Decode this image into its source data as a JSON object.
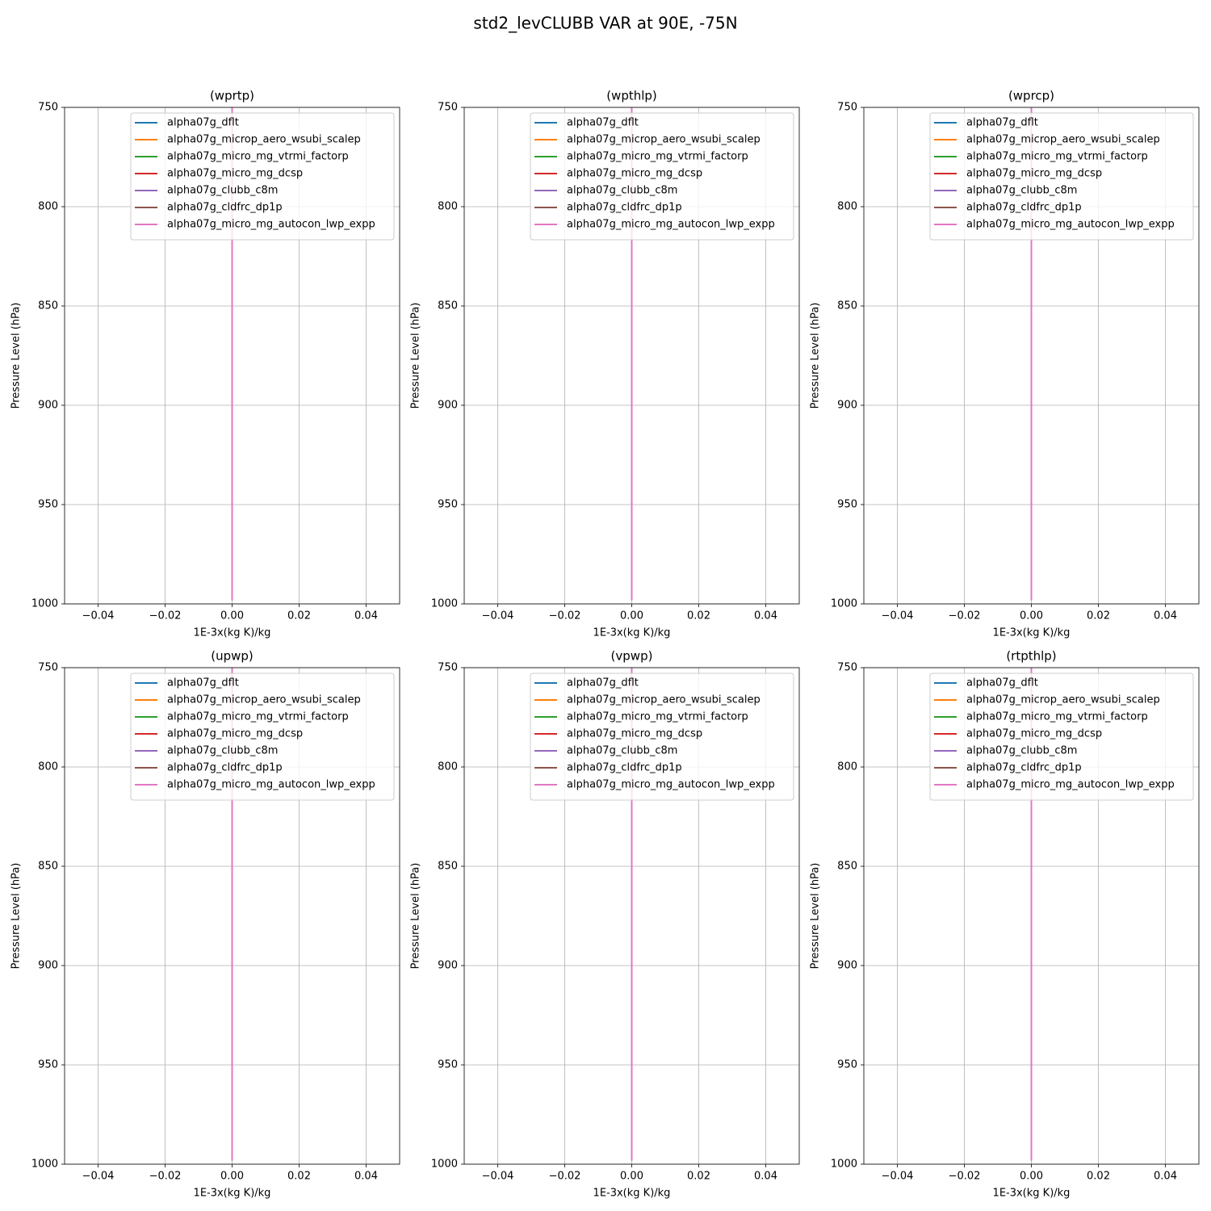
{
  "title": "std2_levCLUBB VAR at 90E, -75N",
  "chart_data": [
    {
      "type": "line",
      "title": "(wprtp)",
      "xlabel": "1E-3x(kg K)/kg",
      "ylabel": "Pressure Level (hPa)",
      "xlim": [
        -0.05,
        0.05
      ],
      "ylim": [
        1000,
        750
      ],
      "xticks": [
        {
          "value": -0.04,
          "label": "−0.04"
        },
        {
          "value": -0.02,
          "label": "−0.02"
        },
        {
          "value": 0,
          "label": "0.00"
        },
        0.02,
        0.04
      ],
      "yticks": [
        750,
        800,
        850,
        900,
        950,
        1000
      ],
      "grid": true,
      "legend": "upper right",
      "y": [
        750,
        800,
        850,
        900,
        950,
        998
      ],
      "series": [
        {
          "name": "alpha07g_dflt",
          "color": "#1f77b4",
          "values": [
            0,
            0,
            0,
            0,
            0,
            0
          ]
        },
        {
          "name": "alpha07g_microp_aero_wsubi_scalep",
          "color": "#ff7f0e",
          "values": [
            0,
            0,
            0,
            0,
            0,
            0
          ]
        },
        {
          "name": "alpha07g_micro_mg_vtrmi_factorp",
          "color": "#2ca02c",
          "values": [
            0,
            0,
            0,
            0,
            0,
            0
          ]
        },
        {
          "name": "alpha07g_micro_mg_dcsp",
          "color": "#d62728",
          "values": [
            0,
            0,
            0,
            0,
            0,
            0
          ]
        },
        {
          "name": "alpha07g_clubb_c8m",
          "color": "#9467bd",
          "values": [
            0,
            0,
            0,
            0,
            0,
            0
          ]
        },
        {
          "name": "alpha07g_cldfrc_dp1p",
          "color": "#8c564b",
          "values": [
            0,
            0,
            0,
            0,
            0,
            0
          ]
        },
        {
          "name": "alpha07g_micro_mg_autocon_lwp_expp",
          "color": "#e377c2",
          "values": [
            0,
            0,
            0,
            0,
            0,
            0
          ]
        }
      ]
    },
    {
      "type": "line",
      "title": "(wpthlp)",
      "xlabel": "1E-3x(kg K)/kg",
      "ylabel": "Pressure Level (hPa)",
      "xlim": [
        -0.05,
        0.05
      ],
      "ylim": [
        1000,
        750
      ],
      "xticks": [
        {
          "value": -0.04,
          "label": "−0.04"
        },
        {
          "value": -0.02,
          "label": "−0.02"
        },
        {
          "value": 0,
          "label": "0.00"
        },
        0.02,
        0.04
      ],
      "yticks": [
        750,
        800,
        850,
        900,
        950,
        1000
      ],
      "grid": true,
      "legend": "upper right",
      "y": [
        750,
        800,
        850,
        900,
        950,
        998
      ],
      "series": [
        {
          "name": "alpha07g_dflt",
          "color": "#1f77b4",
          "values": [
            0,
            0,
            0,
            0,
            0,
            0
          ]
        },
        {
          "name": "alpha07g_microp_aero_wsubi_scalep",
          "color": "#ff7f0e",
          "values": [
            0,
            0,
            0,
            0,
            0,
            0
          ]
        },
        {
          "name": "alpha07g_micro_mg_vtrmi_factorp",
          "color": "#2ca02c",
          "values": [
            0,
            0,
            0,
            0,
            0,
            0
          ]
        },
        {
          "name": "alpha07g_micro_mg_dcsp",
          "color": "#d62728",
          "values": [
            0,
            0,
            0,
            0,
            0,
            0
          ]
        },
        {
          "name": "alpha07g_clubb_c8m",
          "color": "#9467bd",
          "values": [
            0,
            0,
            0,
            0,
            0,
            0
          ]
        },
        {
          "name": "alpha07g_cldfrc_dp1p",
          "color": "#8c564b",
          "values": [
            0,
            0,
            0,
            0,
            0,
            0
          ]
        },
        {
          "name": "alpha07g_micro_mg_autocon_lwp_expp",
          "color": "#e377c2",
          "values": [
            0,
            0,
            0,
            0,
            0,
            0
          ]
        }
      ]
    },
    {
      "type": "line",
      "title": "(wprcp)",
      "xlabel": "1E-3x(kg K)/kg",
      "ylabel": "Pressure Level (hPa)",
      "xlim": [
        -0.05,
        0.05
      ],
      "ylim": [
        1000,
        750
      ],
      "xticks": [
        {
          "value": -0.04,
          "label": "−0.04"
        },
        {
          "value": -0.02,
          "label": "−0.02"
        },
        {
          "value": 0,
          "label": "0.00"
        },
        0.02,
        0.04
      ],
      "yticks": [
        750,
        800,
        850,
        900,
        950,
        1000
      ],
      "grid": true,
      "legend": "upper right",
      "y": [
        750,
        800,
        850,
        900,
        950,
        998
      ],
      "series": [
        {
          "name": "alpha07g_dflt",
          "color": "#1f77b4",
          "values": [
            0,
            0,
            0,
            0,
            0,
            0
          ]
        },
        {
          "name": "alpha07g_microp_aero_wsubi_scalep",
          "color": "#ff7f0e",
          "values": [
            0,
            0,
            0,
            0,
            0,
            0
          ]
        },
        {
          "name": "alpha07g_micro_mg_vtrmi_factorp",
          "color": "#2ca02c",
          "values": [
            0,
            0,
            0,
            0,
            0,
            0
          ]
        },
        {
          "name": "alpha07g_micro_mg_dcsp",
          "color": "#d62728",
          "values": [
            0,
            0,
            0,
            0,
            0,
            0
          ]
        },
        {
          "name": "alpha07g_clubb_c8m",
          "color": "#9467bd",
          "values": [
            0,
            0,
            0,
            0,
            0,
            0
          ]
        },
        {
          "name": "alpha07g_cldfrc_dp1p",
          "color": "#8c564b",
          "values": [
            0,
            0,
            0,
            0,
            0,
            0
          ]
        },
        {
          "name": "alpha07g_micro_mg_autocon_lwp_expp",
          "color": "#e377c2",
          "values": [
            0,
            0,
            0,
            0,
            0,
            0
          ]
        }
      ]
    },
    {
      "type": "line",
      "title": "(upwp)",
      "xlabel": "1E-3x(kg K)/kg",
      "ylabel": "Pressure Level (hPa)",
      "xlim": [
        -0.05,
        0.05
      ],
      "ylim": [
        1000,
        750
      ],
      "xticks": [
        {
          "value": -0.04,
          "label": "−0.04"
        },
        {
          "value": -0.02,
          "label": "−0.02"
        },
        {
          "value": 0,
          "label": "0.00"
        },
        0.02,
        0.04
      ],
      "yticks": [
        750,
        800,
        850,
        900,
        950,
        1000
      ],
      "grid": true,
      "legend": "upper right",
      "y": [
        750,
        800,
        850,
        900,
        950,
        998
      ],
      "series": [
        {
          "name": "alpha07g_dflt",
          "color": "#1f77b4",
          "values": [
            0,
            0,
            0,
            0,
            0,
            0
          ]
        },
        {
          "name": "alpha07g_microp_aero_wsubi_scalep",
          "color": "#ff7f0e",
          "values": [
            0,
            0,
            0,
            0,
            0,
            0
          ]
        },
        {
          "name": "alpha07g_micro_mg_vtrmi_factorp",
          "color": "#2ca02c",
          "values": [
            0,
            0,
            0,
            0,
            0,
            0
          ]
        },
        {
          "name": "alpha07g_micro_mg_dcsp",
          "color": "#d62728",
          "values": [
            0,
            0,
            0,
            0,
            0,
            0
          ]
        },
        {
          "name": "alpha07g_clubb_c8m",
          "color": "#9467bd",
          "values": [
            0,
            0,
            0,
            0,
            0,
            0
          ]
        },
        {
          "name": "alpha07g_cldfrc_dp1p",
          "color": "#8c564b",
          "values": [
            0,
            0,
            0,
            0,
            0,
            0
          ]
        },
        {
          "name": "alpha07g_micro_mg_autocon_lwp_expp",
          "color": "#e377c2",
          "values": [
            0,
            0,
            0,
            0,
            0,
            0
          ]
        }
      ]
    },
    {
      "type": "line",
      "title": "(vpwp)",
      "xlabel": "1E-3x(kg K)/kg",
      "ylabel": "Pressure Level (hPa)",
      "xlim": [
        -0.05,
        0.05
      ],
      "ylim": [
        1000,
        750
      ],
      "xticks": [
        {
          "value": -0.04,
          "label": "−0.04"
        },
        {
          "value": -0.02,
          "label": "−0.02"
        },
        {
          "value": 0,
          "label": "0.00"
        },
        0.02,
        0.04
      ],
      "yticks": [
        750,
        800,
        850,
        900,
        950,
        1000
      ],
      "grid": true,
      "legend": "upper right",
      "y": [
        750,
        800,
        850,
        900,
        950,
        998
      ],
      "series": [
        {
          "name": "alpha07g_dflt",
          "color": "#1f77b4",
          "values": [
            0,
            0,
            0,
            0,
            0,
            0
          ]
        },
        {
          "name": "alpha07g_microp_aero_wsubi_scalep",
          "color": "#ff7f0e",
          "values": [
            0,
            0,
            0,
            0,
            0,
            0
          ]
        },
        {
          "name": "alpha07g_micro_mg_vtrmi_factorp",
          "color": "#2ca02c",
          "values": [
            0,
            0,
            0,
            0,
            0,
            0
          ]
        },
        {
          "name": "alpha07g_micro_mg_dcsp",
          "color": "#d62728",
          "values": [
            0,
            0,
            0,
            0,
            0,
            0
          ]
        },
        {
          "name": "alpha07g_clubb_c8m",
          "color": "#9467bd",
          "values": [
            0,
            0,
            0,
            0,
            0,
            0
          ]
        },
        {
          "name": "alpha07g_cldfrc_dp1p",
          "color": "#8c564b",
          "values": [
            0,
            0,
            0,
            0,
            0,
            0
          ]
        },
        {
          "name": "alpha07g_micro_mg_autocon_lwp_expp",
          "color": "#e377c2",
          "values": [
            0,
            0,
            0,
            0,
            0,
            0
          ]
        }
      ]
    },
    {
      "type": "line",
      "title": "(rtpthlp)",
      "xlabel": "1E-3x(kg K)/kg",
      "ylabel": "Pressure Level (hPa)",
      "xlim": [
        -0.05,
        0.05
      ],
      "ylim": [
        1000,
        750
      ],
      "xticks": [
        {
          "value": -0.04,
          "label": "−0.04"
        },
        {
          "value": -0.02,
          "label": "−0.02"
        },
        {
          "value": 0,
          "label": "0.00"
        },
        0.02,
        0.04
      ],
      "yticks": [
        750,
        800,
        850,
        900,
        950,
        1000
      ],
      "grid": true,
      "legend": "upper right",
      "y": [
        750,
        800,
        850,
        900,
        950,
        998
      ],
      "series": [
        {
          "name": "alpha07g_dflt",
          "color": "#1f77b4",
          "values": [
            0,
            0,
            0,
            0,
            0,
            0
          ]
        },
        {
          "name": "alpha07g_microp_aero_wsubi_scalep",
          "color": "#ff7f0e",
          "values": [
            0,
            0,
            0,
            0,
            0,
            0
          ]
        },
        {
          "name": "alpha07g_micro_mg_vtrmi_factorp",
          "color": "#2ca02c",
          "values": [
            0,
            0,
            0,
            0,
            0,
            0
          ]
        },
        {
          "name": "alpha07g_micro_mg_dcsp",
          "color": "#d62728",
          "values": [
            0,
            0,
            0,
            0,
            0,
            0
          ]
        },
        {
          "name": "alpha07g_clubb_c8m",
          "color": "#9467bd",
          "values": [
            0,
            0,
            0,
            0,
            0,
            0
          ]
        },
        {
          "name": "alpha07g_cldfrc_dp1p",
          "color": "#8c564b",
          "values": [
            0,
            0,
            0,
            0,
            0,
            0
          ]
        },
        {
          "name": "alpha07g_micro_mg_autocon_lwp_expp",
          "color": "#e377c2",
          "values": [
            0,
            0,
            0,
            0,
            0,
            0
          ]
        }
      ]
    }
  ]
}
